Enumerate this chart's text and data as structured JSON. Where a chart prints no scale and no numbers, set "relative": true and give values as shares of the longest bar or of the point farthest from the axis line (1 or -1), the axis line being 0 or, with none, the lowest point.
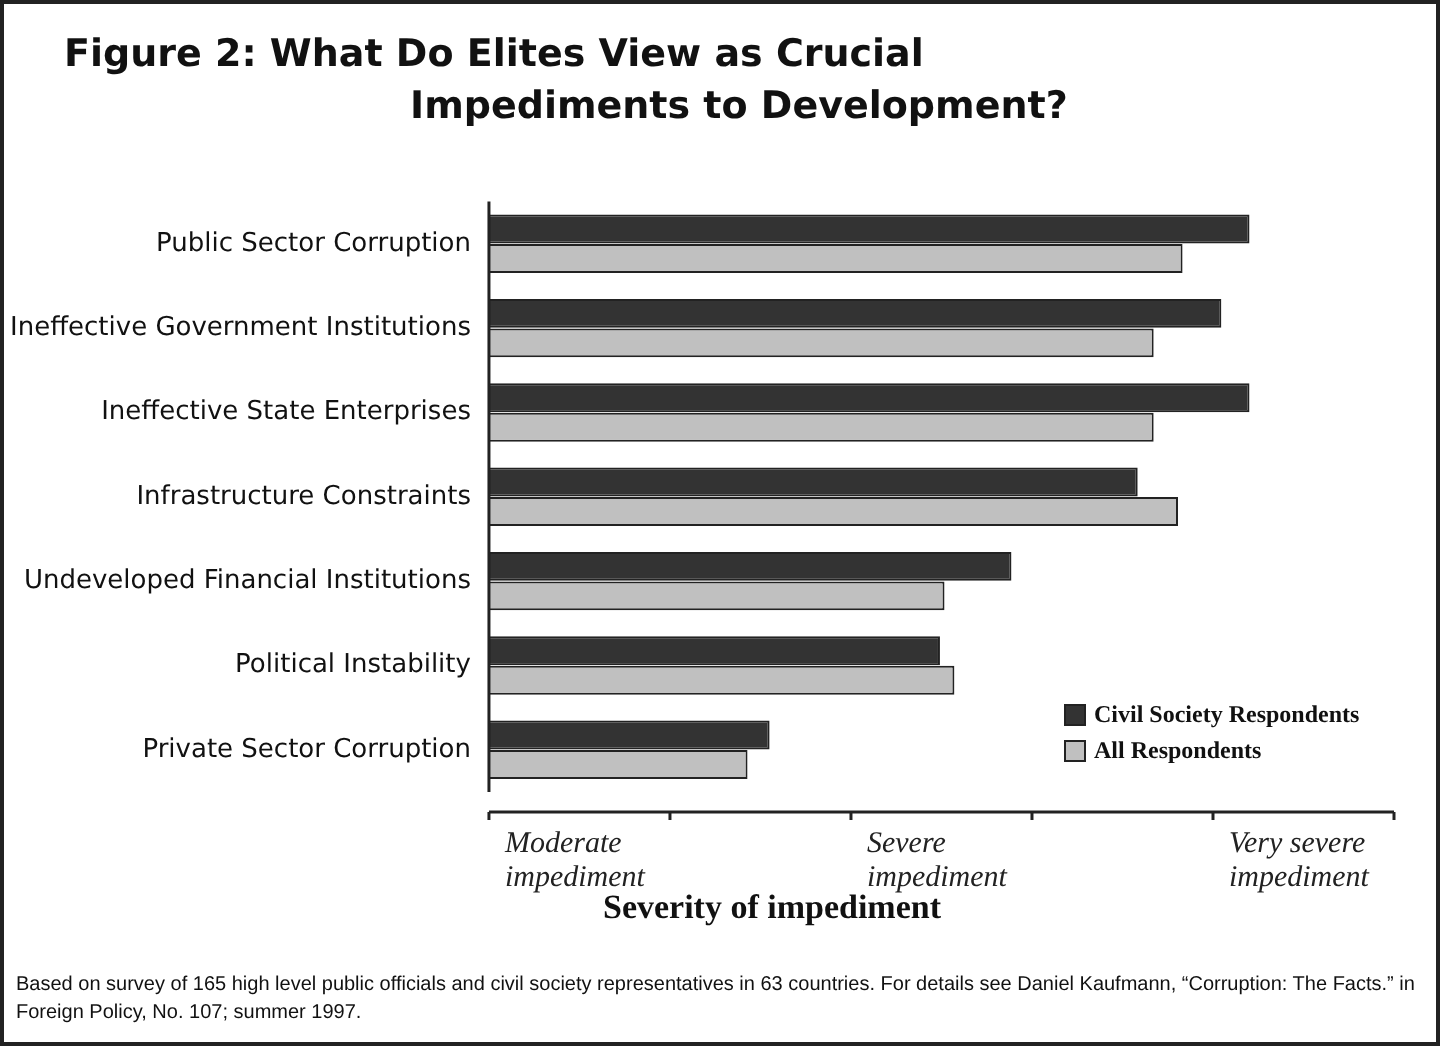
{
  "chart_data": {
    "type": "bar",
    "orientation": "horizontal",
    "relative": true,
    "title": "Figure 2: What Do Elites View as Crucial Impediments to Development?",
    "xlabel": "Severity of impediment",
    "categories": [
      "Public Sector Corruption",
      "Ineffective Government Institutions",
      "Ineffective State Enterprises",
      "Infrastructure Constraints",
      "Undeveloped Financial Institutions",
      "Political Instability",
      "Private Sector Corruption"
    ],
    "series": [
      {
        "name": "Civil Society Respondents",
        "color": "#333333",
        "values": [
          1,
          0.963,
          1,
          0.853,
          0.687,
          0.593,
          0.369
        ]
      },
      {
        "name": "All Respondents",
        "color": "#c0c0c0",
        "values": [
          0.912,
          0.874,
          0.874,
          0.906,
          0.599,
          0.612,
          0.34
        ]
      }
    ],
    "legend": "bottom right",
    "annotations": [
      "Moderate impediment",
      "Severe impediment",
      "Very severe impediment",
      "Based on survey of 165 high level public officials and civil society representatives in 63 countries. For details see Daniel Kaufmann, “Corruption: The Facts.” in Foreign Policy, No. 107; summer 1997."
    ]
  }
}
